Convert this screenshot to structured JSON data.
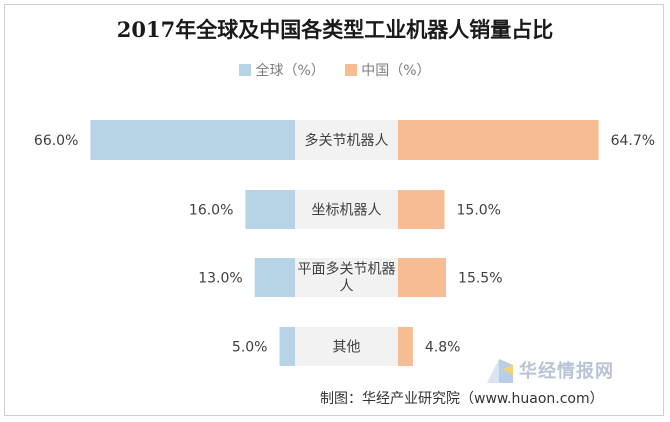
{
  "chart_data": {
    "type": "bar",
    "title": "2017年全球及中国各类型工业机器人销量占比",
    "categories": [
      "多关节机器人",
      "坐标机器人",
      "平面多关节机器人",
      "其他"
    ],
    "series": [
      {
        "name": "全球（%）",
        "values": [
          66.0,
          16.0,
          13.0,
          5.0
        ],
        "labels": [
          "66.0%",
          "16.0%",
          "13.0%",
          "5.0%"
        ],
        "color": "#b7d3e6"
      },
      {
        "name": "中国（%）",
        "values": [
          64.7,
          15.0,
          15.5,
          4.8
        ],
        "labels": [
          "64.7%",
          "15.0%",
          "15.5%",
          "4.8%"
        ],
        "color": "#f6bd95"
      }
    ],
    "orientation": "horizontal-butterfly",
    "legend_position": "top",
    "grid": false
  },
  "watermark": {
    "text": "华经情报网"
  },
  "source": "制图：华经产业研究院（www.huaon.com）"
}
